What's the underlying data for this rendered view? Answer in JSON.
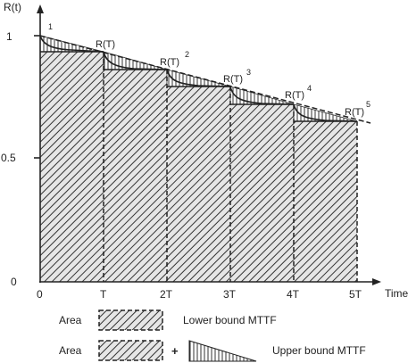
{
  "axes": {
    "y_title": "R(t)",
    "x_title": "Time",
    "y_ticks": [
      "1",
      "0.5",
      "0"
    ],
    "x_ticks": [
      "0",
      "T",
      "2T",
      "3T",
      "4T",
      "5T"
    ]
  },
  "curve_labels": [
    {
      "base": "",
      "sup": "1"
    },
    {
      "base": "R(T)",
      "sup": ""
    },
    {
      "base": "R(T)",
      "sup": "2"
    },
    {
      "base": "R(T)",
      "sup": "3"
    },
    {
      "base": "R(T)",
      "sup": "4"
    },
    {
      "base": "R(T)",
      "sup": "5"
    }
  ],
  "legend": {
    "row1": {
      "prefix": "Area",
      "desc": "Lower bound MTTF"
    },
    "row2": {
      "prefix": "Area",
      "plus": "+",
      "desc": "Upper bound MTTF"
    }
  },
  "colors": {
    "ink": "#222222",
    "hatch": "#333333",
    "fill": "#e6e6e6"
  }
}
